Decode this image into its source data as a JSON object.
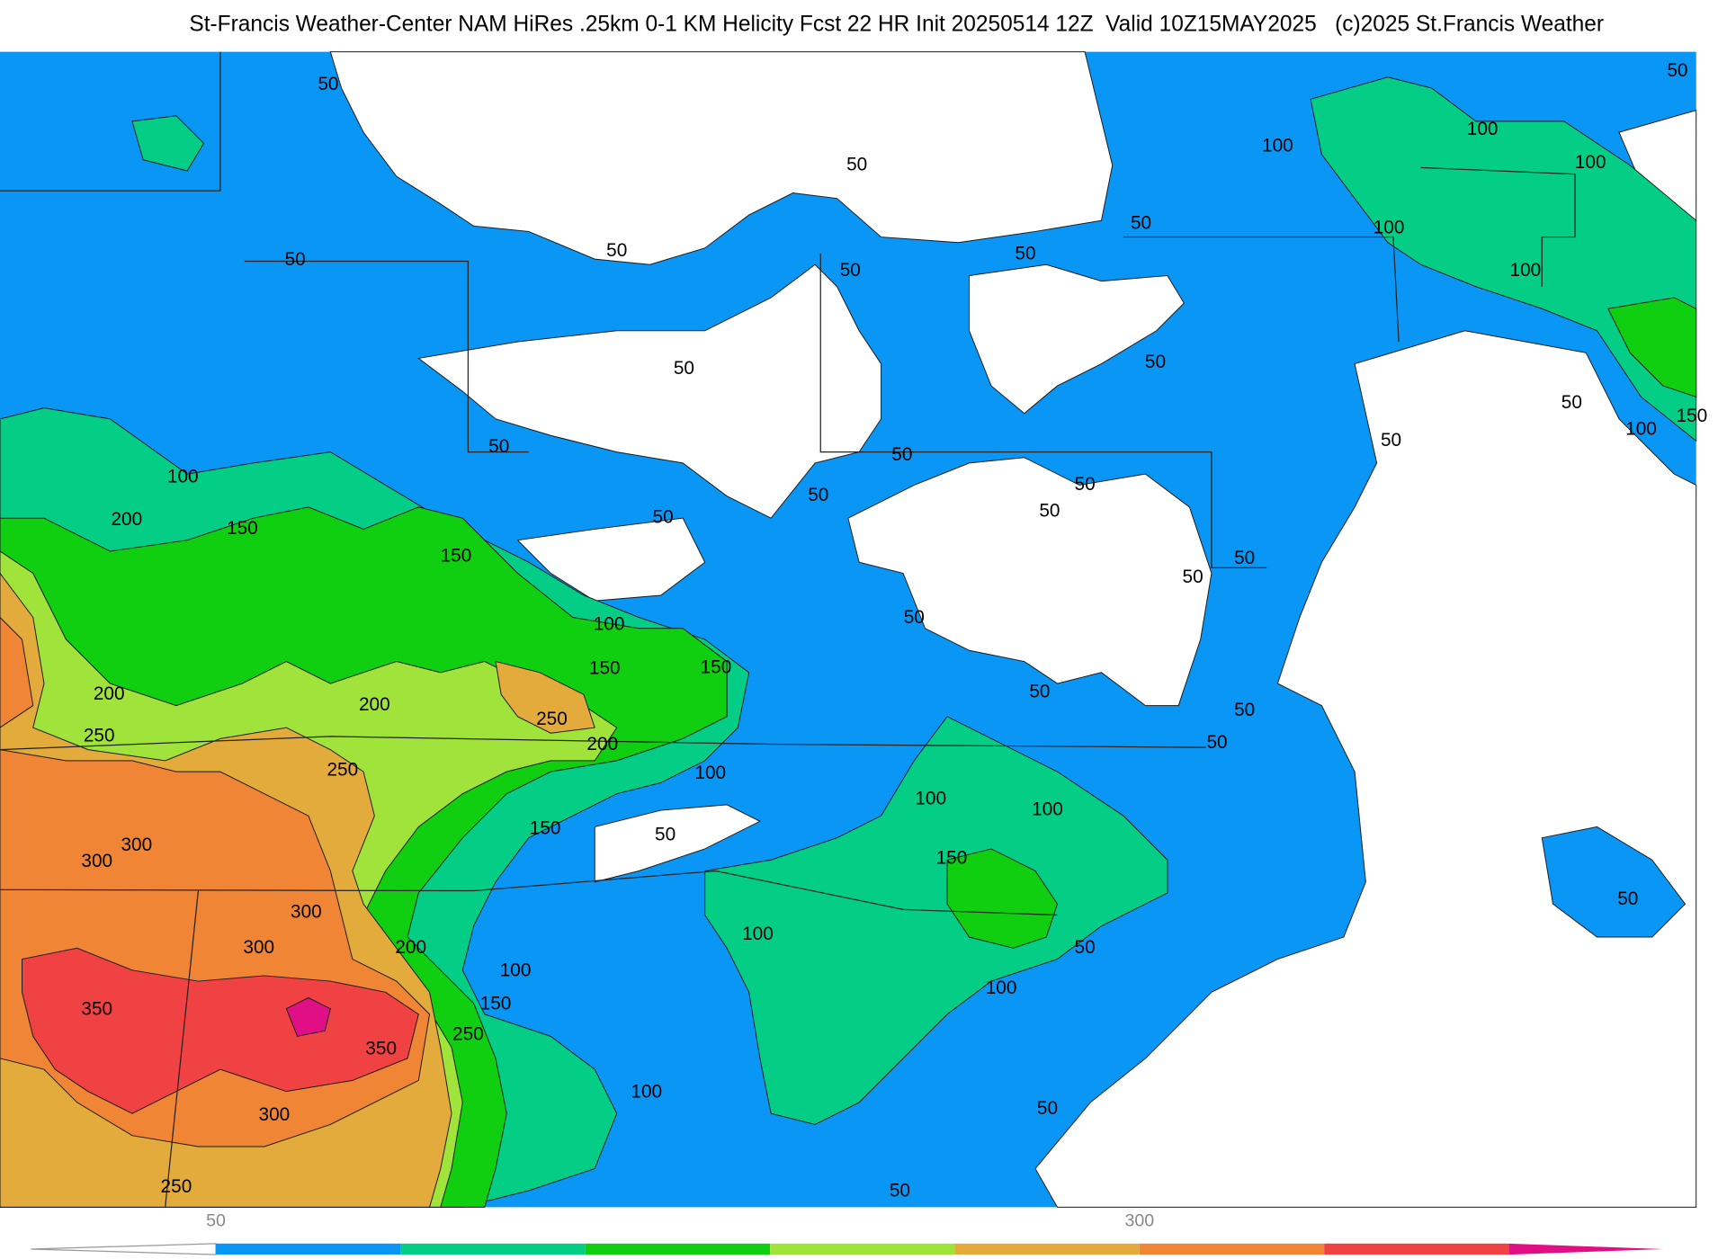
{
  "title": "St-Francis Weather-Center NAM HiRes .25km 0-1 KM Helicity Fcst 22 HR Init 20250514 12Z  Valid 10Z15MAY2025   (c)2025 St.Francis Weather",
  "contour_labels": [
    50,
    50,
    100,
    100,
    100,
    50,
    100,
    50,
    100,
    50,
    50,
    50,
    50,
    50,
    50,
    50,
    100,
    150,
    50,
    50,
    50,
    50,
    100,
    50,
    50,
    200,
    150,
    50,
    150,
    50,
    50,
    100,
    50,
    150,
    150,
    50,
    200,
    200,
    250,
    50,
    250,
    200,
    50,
    100,
    250,
    100,
    100,
    150,
    50,
    300,
    300,
    150,
    300,
    100,
    300,
    200,
    50,
    50,
    100,
    100,
    150,
    350,
    250,
    350,
    100,
    50,
    300,
    250,
    50
  ],
  "colorbar": {
    "levels": [
      50,
      100,
      150,
      200,
      250,
      300,
      350,
      400
    ],
    "colors": [
      "#0a96f5",
      "#04cd86",
      "#10cf10",
      "#a0e33a",
      "#e2ab3b",
      "#ef8535",
      "#f04243",
      "#e10f86"
    ],
    "ticks": [
      50,
      300
    ]
  }
}
